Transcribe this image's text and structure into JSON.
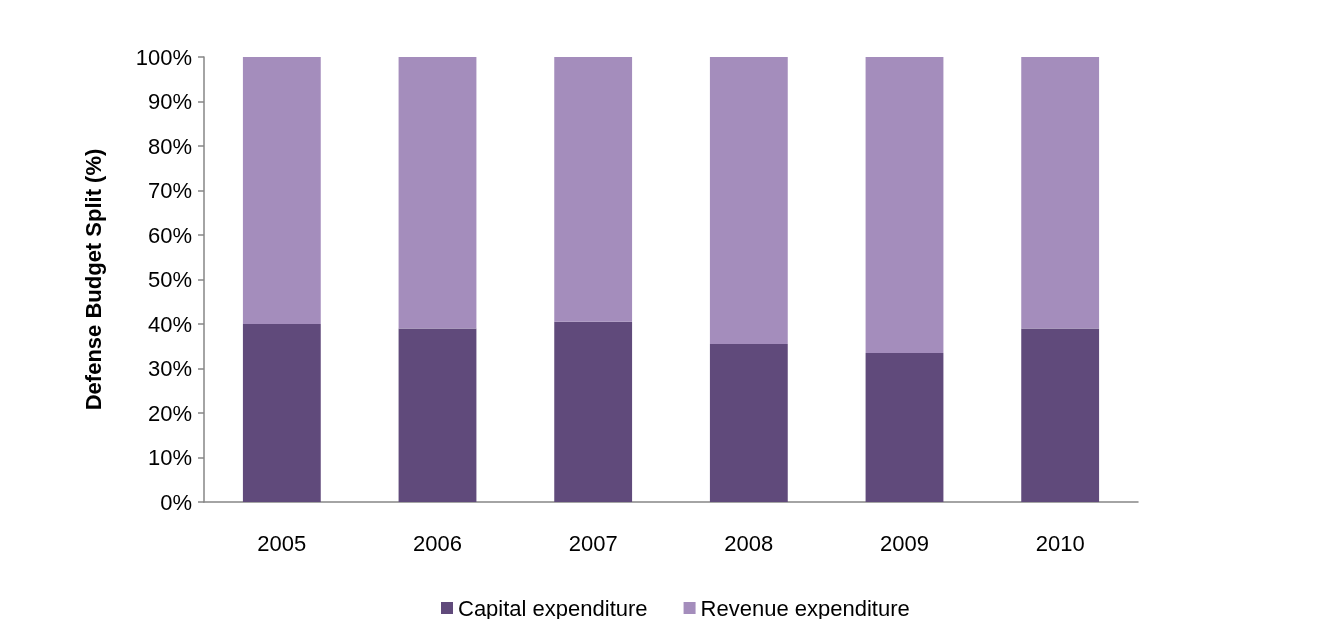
{
  "chart_data": {
    "type": "bar",
    "stacked": true,
    "ylabel": "Defense Budget Split (%)",
    "categories": [
      "2005",
      "2006",
      "2007",
      "2008",
      "2009",
      "2010"
    ],
    "series": [
      {
        "name": "Capital expenditure",
        "color": "#604a7b",
        "values": [
          40,
          39,
          40.5,
          35.5,
          33.5,
          39
        ]
      },
      {
        "name": "Revenue expenditure",
        "color": "#a48dbc",
        "values": [
          60,
          61,
          59.5,
          64.5,
          66.5,
          61
        ]
      }
    ],
    "ylim": [
      0,
      100
    ],
    "yticks": [
      {
        "value": 0,
        "label": "0%"
      },
      {
        "value": 10,
        "label": "10%"
      },
      {
        "value": 20,
        "label": "20%"
      },
      {
        "value": 30,
        "label": "30%"
      },
      {
        "value": 40,
        "label": "40%"
      },
      {
        "value": 50,
        "label": "50%"
      },
      {
        "value": 60,
        "label": "60%"
      },
      {
        "value": 70,
        "label": "70%"
      },
      {
        "value": 80,
        "label": "80%"
      },
      {
        "value": 90,
        "label": "90%"
      },
      {
        "value": 100,
        "label": "100%"
      }
    ],
    "grid": false,
    "legend": "bottom"
  }
}
